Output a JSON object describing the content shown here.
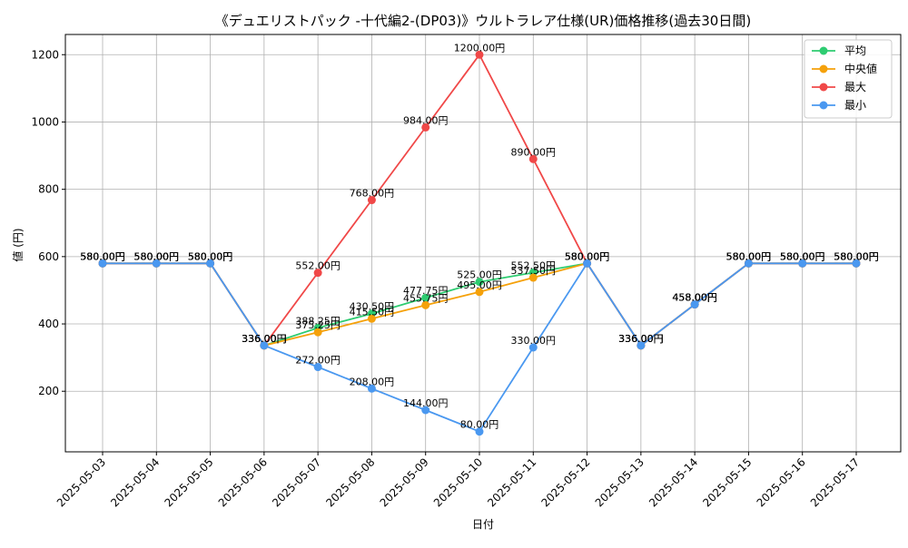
{
  "chart_data": {
    "type": "line",
    "title": "《デュエリストパック -十代編2-(DP03)》ウルトラレア仕様(UR)価格推移(過去30日間)",
    "xlabel": "日付",
    "ylabel": "値 (円)",
    "x": [
      "2025-05-03",
      "2025-05-04",
      "2025-05-05",
      "2025-05-06",
      "2025-05-07",
      "2025-05-08",
      "2025-05-09",
      "2025-05-10",
      "2025-05-11",
      "2025-05-12",
      "2025-05-13",
      "2025-05-14",
      "2025-05-15",
      "2025-05-16",
      "2025-05-17"
    ],
    "ylim": [
      20,
      1260
    ],
    "yticks": [
      200,
      400,
      600,
      800,
      1000,
      1200
    ],
    "grid": true,
    "legend": "top-right",
    "series": [
      {
        "name": "平均",
        "color": "#2ecc71",
        "values": [
          580,
          580,
          580,
          336,
          388.25,
          430.5,
          477.75,
          525,
          552.5,
          580,
          336,
          458,
          580,
          580,
          580
        ]
      },
      {
        "name": "中央値",
        "color": "#f5a10a",
        "values": [
          580,
          580,
          580,
          336,
          375.25,
          415.5,
          455.75,
          495,
          537.5,
          580,
          336,
          458,
          580,
          580,
          580
        ]
      },
      {
        "name": "最大",
        "color": "#f04848",
        "values": [
          580,
          580,
          580,
          336,
          552,
          768,
          984,
          1200,
          890,
          580,
          336,
          458,
          580,
          580,
          580
        ]
      },
      {
        "name": "最小",
        "color": "#4a98f0",
        "values": [
          580,
          580,
          580,
          336,
          272,
          208,
          144,
          80,
          330,
          580,
          336,
          458,
          580,
          580,
          580
        ]
      }
    ],
    "label_suffix": "円"
  }
}
